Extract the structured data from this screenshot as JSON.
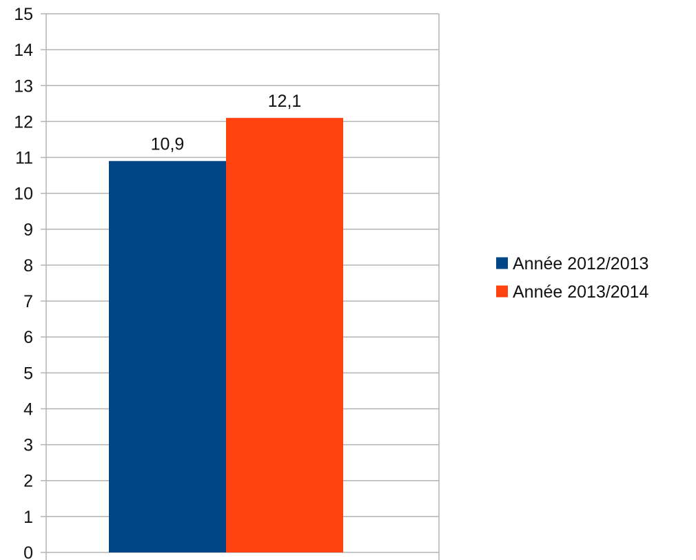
{
  "chart_data": {
    "type": "bar",
    "categories": [
      ""
    ],
    "series": [
      {
        "name": "Année 2012/2013",
        "values": [
          10.9
        ],
        "value_labels": [
          "10,9"
        ],
        "color": "#004586"
      },
      {
        "name": "Année 2013/2014",
        "values": [
          12.1
        ],
        "value_labels": [
          "12,1"
        ],
        "color": "#ff420e"
      }
    ],
    "ylim": [
      0,
      15
    ],
    "yticks": [
      0,
      1,
      2,
      3,
      4,
      5,
      6,
      7,
      8,
      9,
      10,
      11,
      12,
      13,
      14,
      15
    ],
    "grid": true,
    "grid_color": "#b3b3b3",
    "legend_position": "right"
  }
}
